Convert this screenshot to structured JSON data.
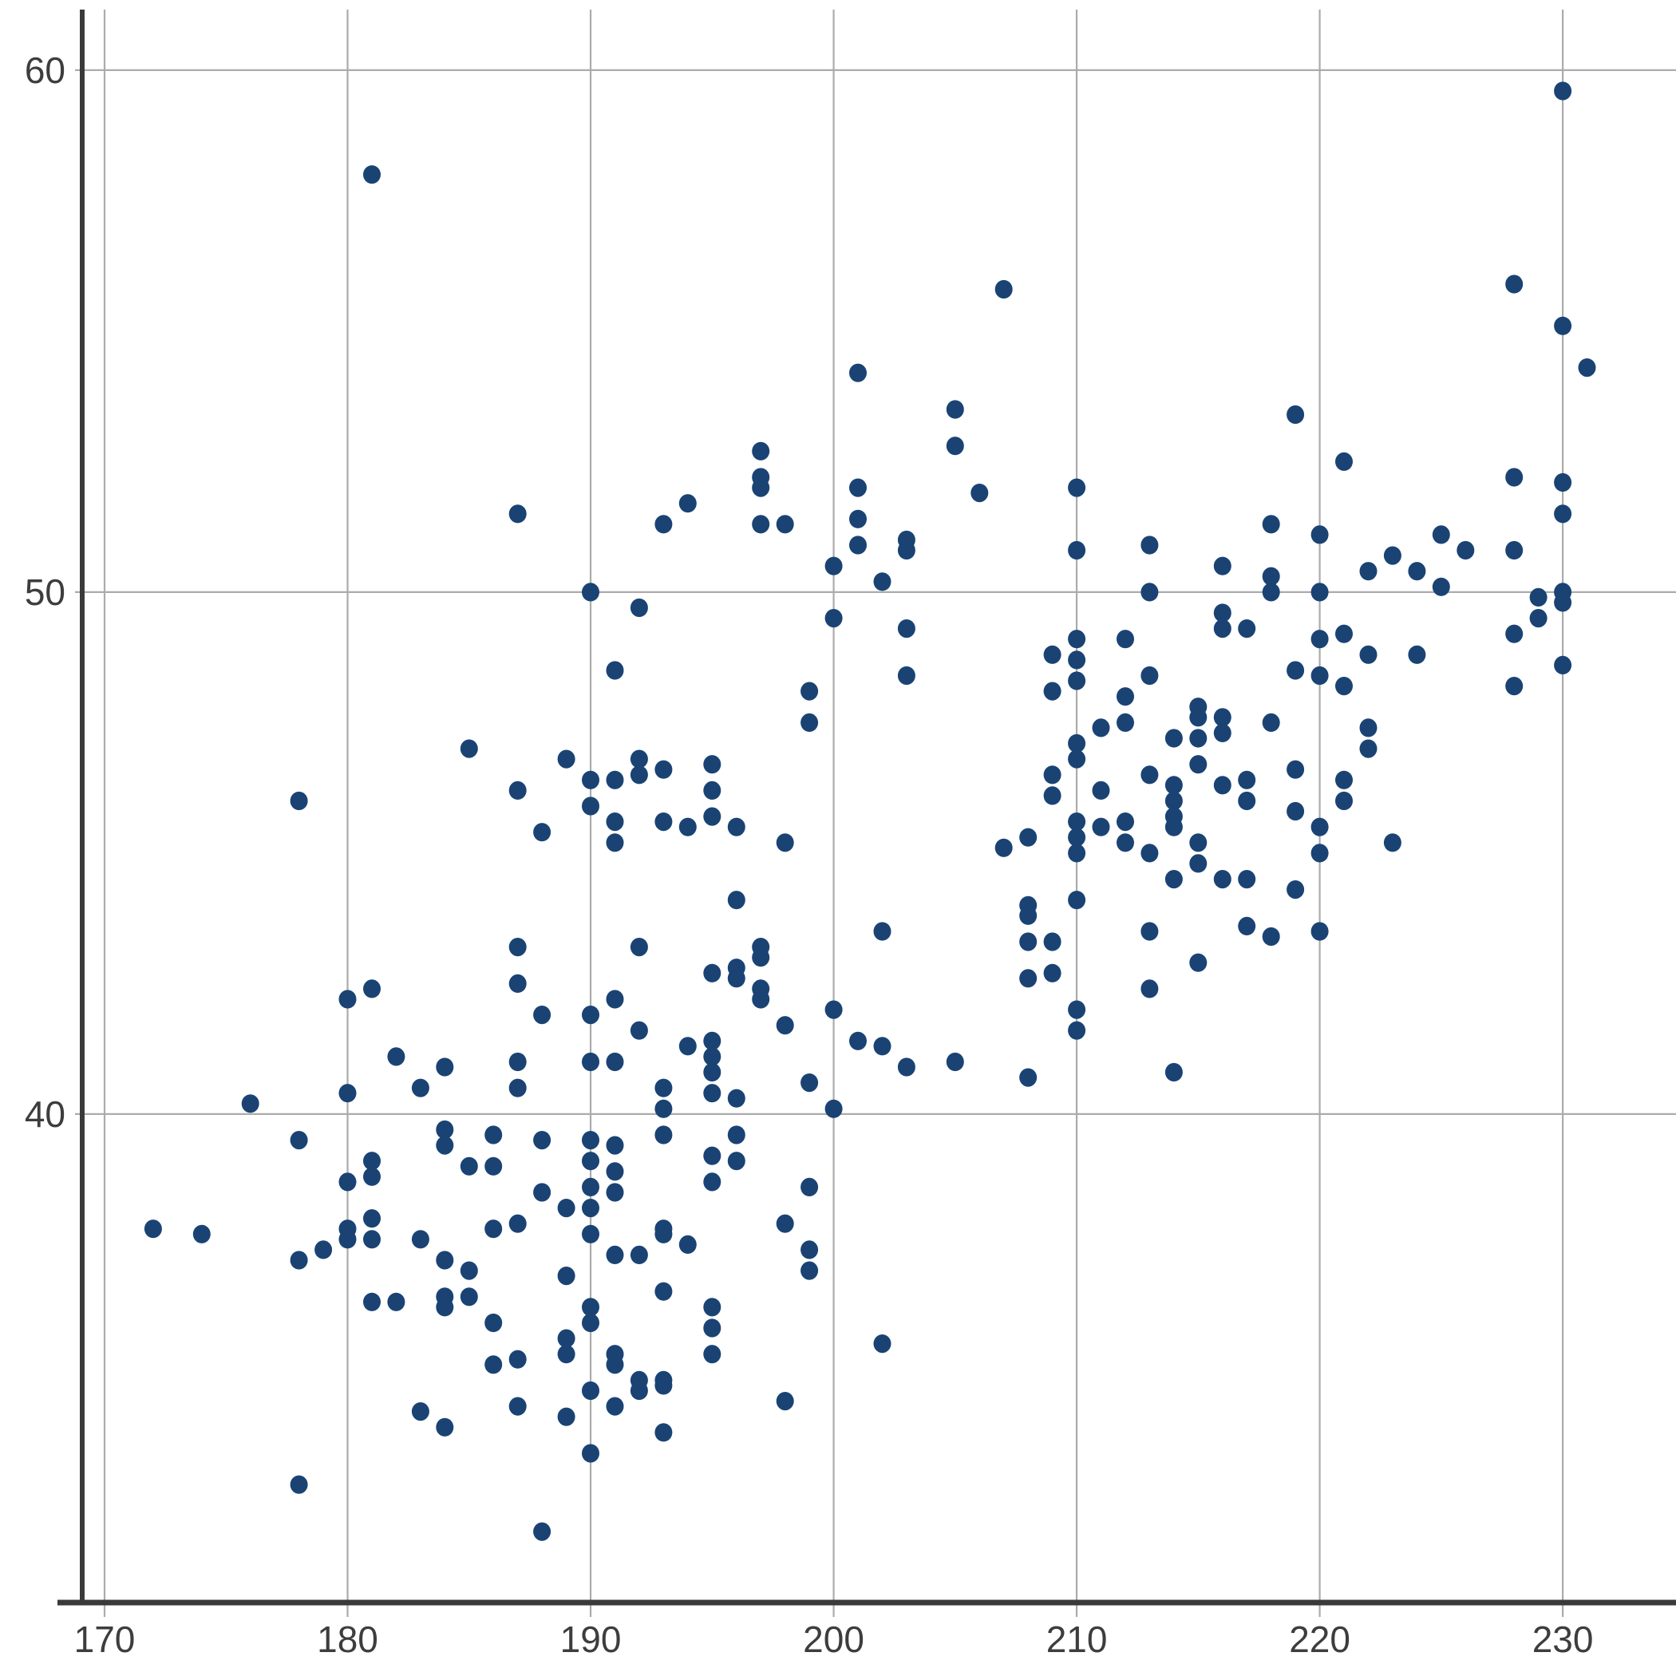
{
  "chart_data": {
    "type": "scatter",
    "title": "",
    "subtitle": "",
    "xlabel": "",
    "ylabel": "",
    "legend": null,
    "grid": true,
    "x_ticks": [
      170,
      180,
      190,
      200,
      210,
      220,
      230
    ],
    "y_ticks": [
      40,
      50,
      60
    ],
    "x_range": [
      169.08,
      234.66
    ],
    "y_range": [
      30.64,
      61.16
    ],
    "marker": {
      "shape": "circle",
      "rx": 11,
      "ry": 11.6,
      "color": "#1A4374"
    },
    "colors": {
      "grid": "#ABABAB",
      "spine": "#3A3A3A",
      "tick_label": "#3D3D3D"
    },
    "tick_font_size": 46,
    "points": [
      [
        181,
        58
      ],
      [
        230,
        59.6
      ],
      [
        228,
        55.9
      ],
      [
        230,
        55.1
      ],
      [
        231,
        54.3
      ],
      [
        207,
        55.8
      ],
      [
        201,
        54.2
      ],
      [
        205,
        53.5
      ],
      [
        219,
        53.4
      ],
      [
        221,
        52.5
      ],
      [
        228,
        52.2
      ],
      [
        230,
        52.1
      ],
      [
        230,
        51.5
      ],
      [
        187,
        51.5
      ],
      [
        190,
        50
      ],
      [
        191,
        48.5
      ],
      [
        185,
        47
      ],
      [
        189,
        46.8
      ],
      [
        190,
        46.4
      ],
      [
        191,
        46.4
      ],
      [
        187,
        46.2
      ],
      [
        190,
        45.9
      ],
      [
        178,
        46
      ],
      [
        192,
        46.8
      ],
      [
        192,
        46.5
      ],
      [
        193,
        46.6
      ],
      [
        195,
        46.7
      ],
      [
        195,
        46.2
      ],
      [
        205,
        52.8
      ],
      [
        197,
        52.7
      ],
      [
        197,
        52.2
      ],
      [
        197,
        52
      ],
      [
        194,
        51.7
      ],
      [
        193,
        51.3
      ],
      [
        197,
        51.3
      ],
      [
        198,
        51.3
      ],
      [
        201,
        52
      ],
      [
        201,
        51.4
      ],
      [
        203,
        51
      ],
      [
        203,
        50.8
      ],
      [
        206,
        51.9
      ],
      [
        210,
        52
      ],
      [
        210,
        50.8
      ],
      [
        200,
        50.5
      ],
      [
        201,
        50.9
      ],
      [
        202,
        50.2
      ],
      [
        192,
        49.7
      ],
      [
        203,
        49.3
      ],
      [
        203,
        48.4
      ],
      [
        199,
        48.1
      ],
      [
        199,
        47.5
      ],
      [
        200,
        49.5
      ],
      [
        213,
        50
      ],
      [
        216,
        50.5
      ],
      [
        218,
        50.3
      ],
      [
        218,
        50
      ],
      [
        213,
        50.9
      ],
      [
        218,
        51.3
      ],
      [
        220,
        51.1
      ],
      [
        225,
        51.1
      ],
      [
        223,
        50.7
      ],
      [
        226,
        50.8
      ],
      [
        228,
        50.8
      ],
      [
        222,
        50.4
      ],
      [
        224,
        50.4
      ],
      [
        225,
        50.1
      ],
      [
        220,
        50
      ],
      [
        230,
        50
      ],
      [
        230,
        49.8
      ],
      [
        229,
        49.9
      ],
      [
        229,
        49.5
      ],
      [
        216,
        49.6
      ],
      [
        216,
        49.3
      ],
      [
        217,
        49.3
      ],
      [
        220,
        49.1
      ],
      [
        221,
        49.2
      ],
      [
        222,
        48.8
      ],
      [
        224,
        48.8
      ],
      [
        219,
        48.5
      ],
      [
        220,
        48.4
      ],
      [
        221,
        48.2
      ],
      [
        228,
        49.2
      ],
      [
        228,
        48.2
      ],
      [
        230,
        48.6
      ],
      [
        212,
        49.1
      ],
      [
        212,
        48
      ],
      [
        213,
        48.4
      ],
      [
        209,
        48.8
      ],
      [
        210,
        49.1
      ],
      [
        210,
        48.7
      ],
      [
        209,
        48.1
      ],
      [
        210,
        48.3
      ],
      [
        215,
        47.8
      ],
      [
        215,
        47.6
      ],
      [
        216,
        47.6
      ],
      [
        214,
        47.2
      ],
      [
        215,
        47.2
      ],
      [
        216,
        47.3
      ],
      [
        218,
        47.5
      ],
      [
        219,
        46.6
      ],
      [
        222,
        47.4
      ],
      [
        222,
        47
      ],
      [
        215,
        46.7
      ],
      [
        213,
        46.5
      ],
      [
        214,
        46.3
      ],
      [
        214,
        46
      ],
      [
        216,
        46.3
      ],
      [
        217,
        46.4
      ],
      [
        217,
        46
      ],
      [
        219,
        45.8
      ],
      [
        221,
        46.4
      ],
      [
        221,
        46
      ],
      [
        211,
        47.4
      ],
      [
        210,
        47.1
      ],
      [
        212,
        47.5
      ],
      [
        209,
        46.5
      ],
      [
        209,
        46.1
      ],
      [
        210,
        46.8
      ],
      [
        211,
        46.2
      ],
      [
        214,
        45.7
      ],
      [
        214,
        45.5
      ],
      [
        215,
        45.2
      ],
      [
        215,
        44.8
      ],
      [
        213,
        45
      ],
      [
        214,
        44.5
      ],
      [
        216,
        44.5
      ],
      [
        217,
        44.5
      ],
      [
        219,
        44.3
      ],
      [
        220,
        45.5
      ],
      [
        220,
        45
      ],
      [
        223,
        45.2
      ],
      [
        217,
        43.6
      ],
      [
        218,
        43.4
      ],
      [
        220,
        43.5
      ],
      [
        213,
        43.5
      ],
      [
        215,
        42.9
      ],
      [
        213,
        42.4
      ],
      [
        214,
        40.8
      ],
      [
        210,
        45.6
      ],
      [
        210,
        45.3
      ],
      [
        210,
        45
      ],
      [
        211,
        45.5
      ],
      [
        212,
        45.6
      ],
      [
        212,
        45.2
      ],
      [
        207,
        45.1
      ],
      [
        208,
        45.3
      ],
      [
        210,
        44.1
      ],
      [
        208,
        44
      ],
      [
        208,
        43.8
      ],
      [
        208,
        43.3
      ],
      [
        209,
        43.3
      ],
      [
        208,
        42.6
      ],
      [
        209,
        42.7
      ],
      [
        210,
        42
      ],
      [
        210,
        41.6
      ],
      [
        208,
        40.7
      ],
      [
        193,
        45.6
      ],
      [
        194,
        45.5
      ],
      [
        195,
        45.7
      ],
      [
        196,
        45.5
      ],
      [
        198,
        45.2
      ],
      [
        196,
        44.1
      ],
      [
        202,
        43.5
      ],
      [
        192,
        43.2
      ],
      [
        197,
        43.2
      ],
      [
        197,
        43
      ],
      [
        195,
        42.7
      ],
      [
        196,
        42.8
      ],
      [
        196,
        42.6
      ],
      [
        197,
        42.4
      ],
      [
        197,
        42.2
      ],
      [
        200,
        42
      ],
      [
        198,
        41.7
      ],
      [
        201,
        41.4
      ],
      [
        202,
        41.3
      ],
      [
        203,
        40.9
      ],
      [
        205,
        41
      ],
      [
        191,
        45.6
      ],
      [
        191,
        45.2
      ],
      [
        191,
        42.2
      ],
      [
        190,
        41.9
      ],
      [
        188,
        41.9
      ],
      [
        190,
        41
      ],
      [
        191,
        41
      ],
      [
        192,
        41.6
      ],
      [
        194,
        41.3
      ],
      [
        195,
        41.4
      ],
      [
        195,
        41.1
      ],
      [
        195,
        40.8
      ],
      [
        195,
        40.4
      ],
      [
        196,
        40.3
      ],
      [
        199,
        40.6
      ],
      [
        200,
        40.1
      ],
      [
        193,
        40.5
      ],
      [
        193,
        40.1
      ],
      [
        193,
        39.6
      ],
      [
        188,
        45.4
      ],
      [
        187,
        43.2
      ],
      [
        187,
        42.5
      ],
      [
        180,
        42.2
      ],
      [
        181,
        42.4
      ],
      [
        182,
        41.1
      ],
      [
        184,
        40.9
      ],
      [
        183,
        40.5
      ],
      [
        180,
        40.4
      ],
      [
        187,
        41
      ],
      [
        187,
        40.5
      ],
      [
        176,
        40.2
      ],
      [
        178,
        39.5
      ],
      [
        184,
        39.7
      ],
      [
        184,
        39.4
      ],
      [
        186,
        39.6
      ],
      [
        188,
        39.5
      ],
      [
        181,
        39.1
      ],
      [
        181,
        38.8
      ],
      [
        180,
        38.7
      ],
      [
        185,
        39
      ],
      [
        186,
        39
      ],
      [
        188,
        38.5
      ],
      [
        189,
        38.2
      ],
      [
        196,
        39.6
      ],
      [
        196,
        39.1
      ],
      [
        195,
        39.2
      ],
      [
        195,
        38.7
      ],
      [
        199,
        38.6
      ],
      [
        190,
        39.5
      ],
      [
        190,
        39.1
      ],
      [
        190,
        38.6
      ],
      [
        190,
        38.2
      ],
      [
        190,
        37.7
      ],
      [
        191,
        39.4
      ],
      [
        191,
        38.9
      ],
      [
        191,
        38.5
      ],
      [
        172,
        37.8
      ],
      [
        174,
        37.7
      ],
      [
        178,
        37.2
      ],
      [
        179,
        37.4
      ],
      [
        180,
        37.8
      ],
      [
        180,
        37.6
      ],
      [
        181,
        38
      ],
      [
        181,
        37.6
      ],
      [
        183,
        37.6
      ],
      [
        181,
        36.4
      ],
      [
        182,
        36.4
      ],
      [
        184,
        37.2
      ],
      [
        184,
        36.5
      ],
      [
        184,
        36.3
      ],
      [
        185,
        37
      ],
      [
        185,
        36.5
      ],
      [
        186,
        37.8
      ],
      [
        186,
        36
      ],
      [
        186,
        35.2
      ],
      [
        187,
        37.9
      ],
      [
        183,
        34.3
      ],
      [
        184,
        34
      ],
      [
        178,
        32.9
      ],
      [
        187,
        35.3
      ],
      [
        187,
        34.4
      ],
      [
        189,
        36.9
      ],
      [
        190,
        36.3
      ],
      [
        190,
        36
      ],
      [
        189,
        35.7
      ],
      [
        189,
        35.4
      ],
      [
        191,
        35.4
      ],
      [
        191,
        35.2
      ],
      [
        192,
        34.9
      ],
      [
        193,
        34.9
      ],
      [
        191,
        34.4
      ],
      [
        190,
        34.7
      ],
      [
        189,
        34.2
      ],
      [
        192,
        34.7
      ],
      [
        193,
        34.8
      ],
      [
        193,
        33.9
      ],
      [
        190,
        33.5
      ],
      [
        188,
        32
      ],
      [
        193,
        37.8
      ],
      [
        194,
        37.5
      ],
      [
        191,
        37.3
      ],
      [
        192,
        37.3
      ],
      [
        193,
        37.7
      ],
      [
        193,
        36.6
      ],
      [
        195,
        36.3
      ],
      [
        195,
        35.9
      ],
      [
        195,
        35.4
      ],
      [
        198,
        37.9
      ],
      [
        199,
        37.4
      ],
      [
        199,
        37
      ],
      [
        198,
        34.5
      ],
      [
        202,
        35.6
      ]
    ]
  }
}
